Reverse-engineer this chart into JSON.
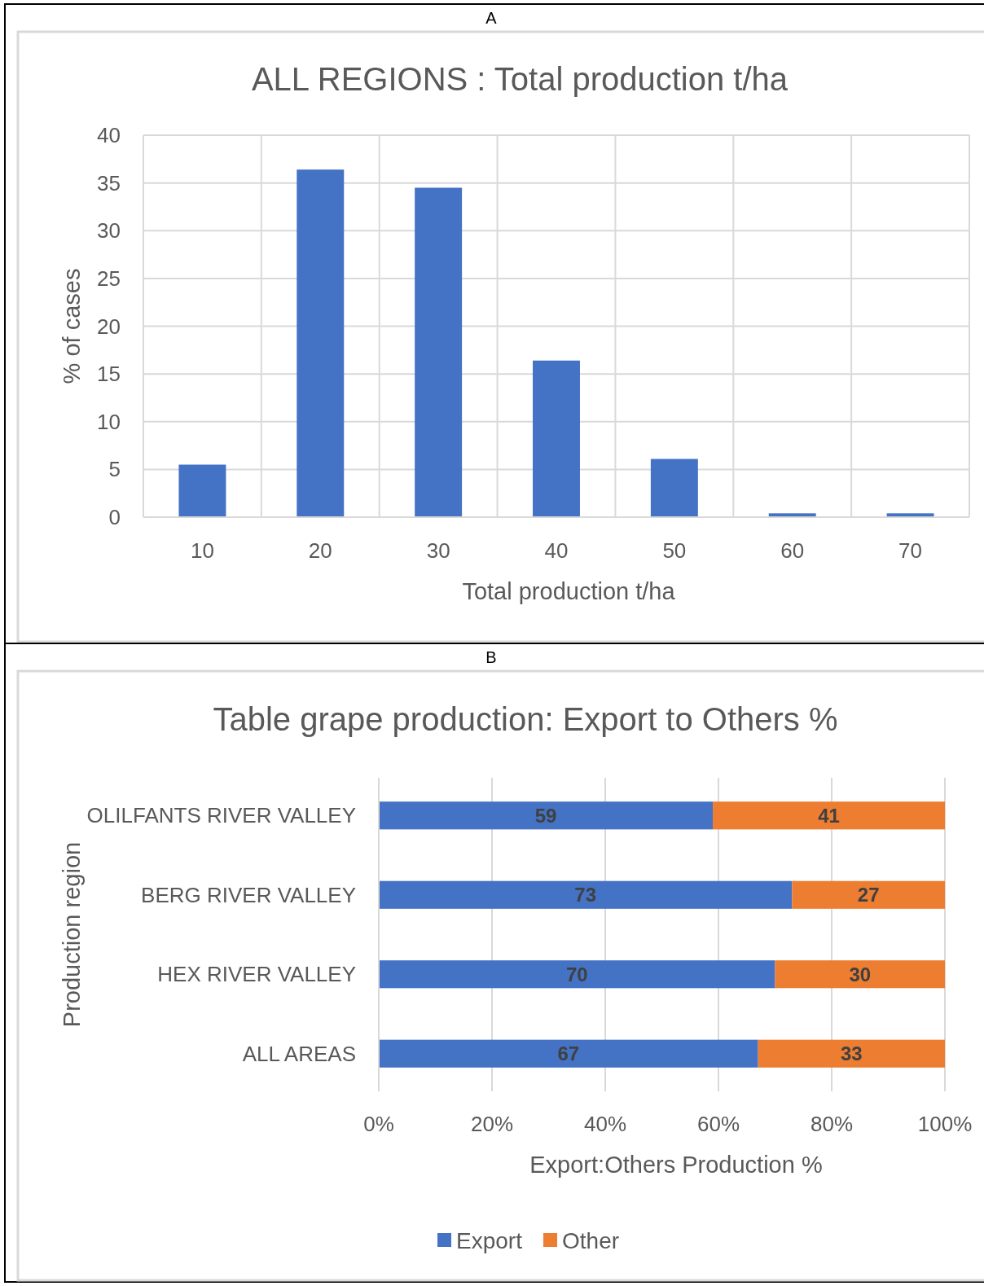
{
  "chart_data": [
    {
      "type": "bar",
      "title": "ALL REGIONS : Total production t/ha",
      "xlabel": "Total production t/ha",
      "ylabel": "% of cases",
      "annotations": [
        "A"
      ],
      "categories": [
        "10",
        "20",
        "30",
        "40",
        "50",
        "60",
        "70"
      ],
      "values": [
        5.5,
        36.4,
        34.5,
        16.4,
        6.1,
        0.4,
        0.4
      ],
      "color": "#4472c4",
      "ylim": [
        0,
        40
      ],
      "yticks": [
        0,
        5,
        10,
        15,
        20,
        25,
        30,
        35,
        40
      ],
      "grid": true
    },
    {
      "type": "bar",
      "orientation": "horizontal",
      "stacked": true,
      "title": "Table grape production: Export to Others %",
      "xlabel": "Export:Others Production %",
      "ylabel": "Production region",
      "annotations": [
        "B"
      ],
      "categories": [
        "OLILFANTS RIVER VALLEY",
        "BERG RIVER VALLEY",
        "HEX RIVER VALLEY",
        "ALL AREAS"
      ],
      "series": [
        {
          "name": "Export",
          "color": "#4472c4",
          "values": [
            59,
            73,
            70,
            67
          ]
        },
        {
          "name": "Other",
          "color": "#ed7d31",
          "values": [
            41,
            27,
            30,
            33
          ]
        }
      ],
      "xlim": [
        0,
        100
      ],
      "xticks": [
        {
          "value": 0,
          "label": "0%"
        },
        {
          "value": 20,
          "label": "20%"
        },
        {
          "value": 40,
          "label": "40%"
        },
        {
          "value": 60,
          "label": "60%"
        },
        {
          "value": 80,
          "label": "80%"
        },
        {
          "value": 100,
          "label": "100%"
        }
      ],
      "data_labels": true,
      "grid": "x",
      "legend": "bottom"
    }
  ]
}
